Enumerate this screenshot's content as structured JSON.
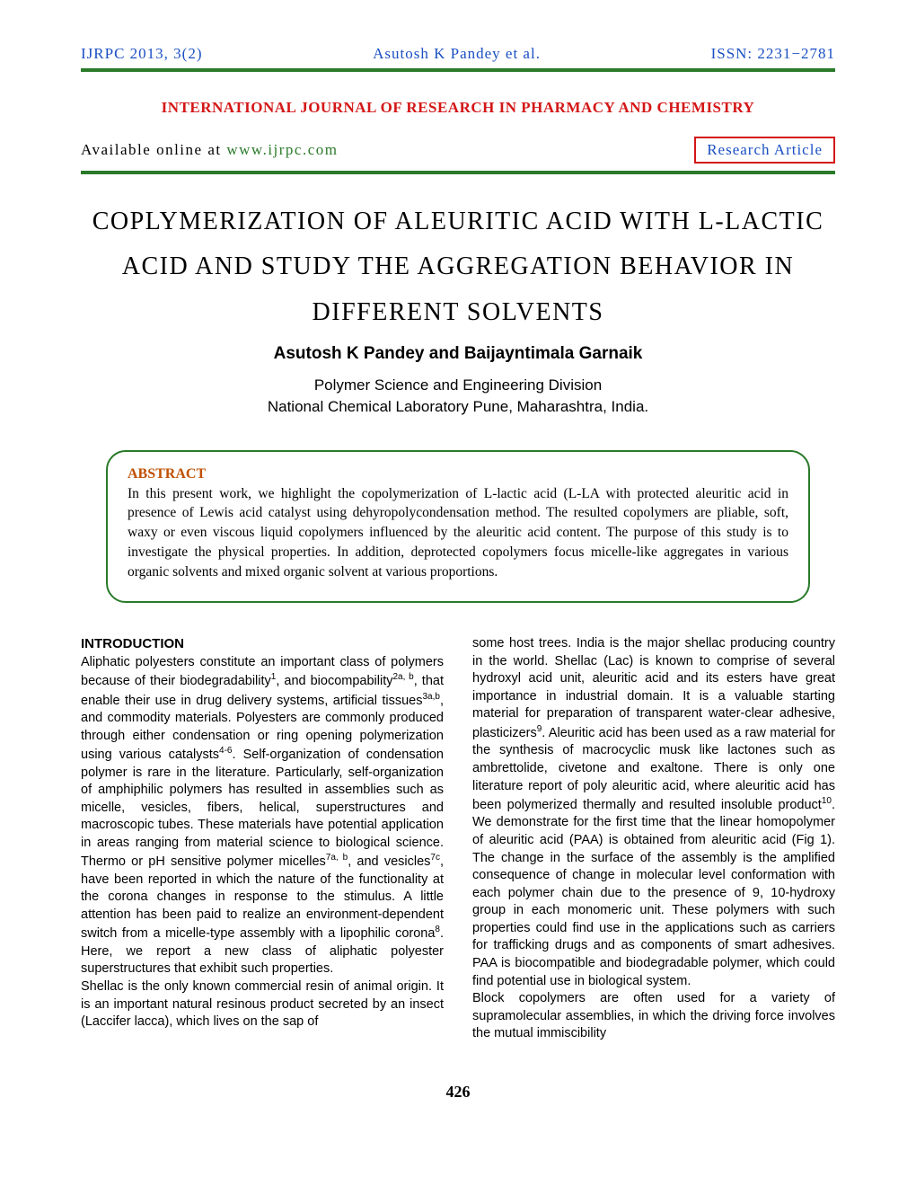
{
  "header": {
    "journal_ref": "IJRPC 2013, 3(2)",
    "authors_short": "Asutosh K Pandey et al.",
    "issn": "ISSN: 2231−2781"
  },
  "journal_name": "INTERNATIONAL JOURNAL OF RESEARCH IN PHARMACY AND CHEMISTRY",
  "available": {
    "prefix": "Available online at ",
    "link": "www.ijrpc.com"
  },
  "badge": "Research Article",
  "title": "COPLYMERIZATION OF ALEURITIC ACID WITH L-LACTIC ACID AND STUDY THE AGGREGATION BEHAVIOR IN DIFFERENT SOLVENTS",
  "authors": "Asutosh K Pandey and Baijayntimala Garnaik",
  "affiliation": "Polymer Science and Engineering Division\nNational Chemical Laboratory Pune, Maharashtra, India.",
  "abstract": {
    "heading": "ABSTRACT",
    "text": "In this present work, we highlight the copolymerization of L-lactic acid (L-LA with protected aleuritic acid in presence of Lewis acid catalyst using dehyropolycondensation method. The resulted copolymers are pliable, soft, waxy or even viscous liquid copolymers influenced by the aleuritic acid content. The purpose of this study is to investigate the physical properties. In addition, deprotected copolymers focus micelle-like aggregates in various organic solvents and mixed organic solvent at various proportions."
  },
  "intro_heading": "INTRODUCTION",
  "col1_html": "Aliphatic polyesters constitute an important class of polymers because of their biodegradability<sup>1</sup>, and biocompability<sup>2a, b</sup>, that enable their use in drug delivery systems, artificial tissues<sup>3a,b</sup>, and commodity materials. Polyesters are commonly produced through either condensation or ring opening polymerization using various catalysts<sup>4-6</sup>. Self-organization of condensation polymer is rare in the literature. Particularly, self-organization of amphiphilic polymers has resulted in assemblies such as micelle, vesicles, fibers, helical, superstructures and macroscopic tubes. These materials have potential application in areas ranging from material science to biological science. Thermo or pH sensitive polymer micelles<sup>7a, b</sup>, and vesicles<sup>7c</sup>, have been reported in which the nature of the functionality at the corona changes in response to the stimulus. A little attention has been paid to realize an environment-dependent switch from a micelle-type assembly with a lipophilic corona<sup>8</sup>. Here, we report a new class of aliphatic polyester superstructures that exhibit such properties.<br>Shellac is the only known commercial resin of animal origin. It is an important natural resinous product secreted by an insect (Laccifer lacca), which lives on the sap of",
  "col2_html": "some host trees. India is the major shellac producing country in the world. Shellac (Lac) is known to comprise of several hydroxyl acid unit, aleuritic acid and its esters have great importance in industrial domain. It is a valuable starting material for preparation of transparent water-clear adhesive, plasticizers<sup>9</sup>. Aleuritic acid has been used as a raw material for the synthesis of macrocyclic musk like lactones such as ambrettolide, civetone and exaltone. There is only one literature report of poly aleuritic acid, where aleuritic acid has been polymerized thermally and resulted insoluble product<sup>10</sup>. We demonstrate for the first time that the linear homopolymer of aleuritic acid (PAA) is obtained from aleuritic acid (Fig 1). The change in the surface of the assembly is the amplified consequence of change in molecular level conformation with each polymer chain due to the presence of 9, 10-hydroxy group in each monomeric unit. These polymers with such properties could find use in the applications such as carriers for trafficking drugs and as components of smart adhesives. PAA is biocompatible and biodegradable polymer, which could find potential use in biological system.<br>Block copolymers are often used for a variety of supramolecular assemblies, in which the driving force involves the mutual immiscibility",
  "page_number": "426",
  "colors": {
    "blue": "#1a4fc4",
    "red": "#d41717",
    "green": "#2a7a2a",
    "orange": "#c05000"
  }
}
